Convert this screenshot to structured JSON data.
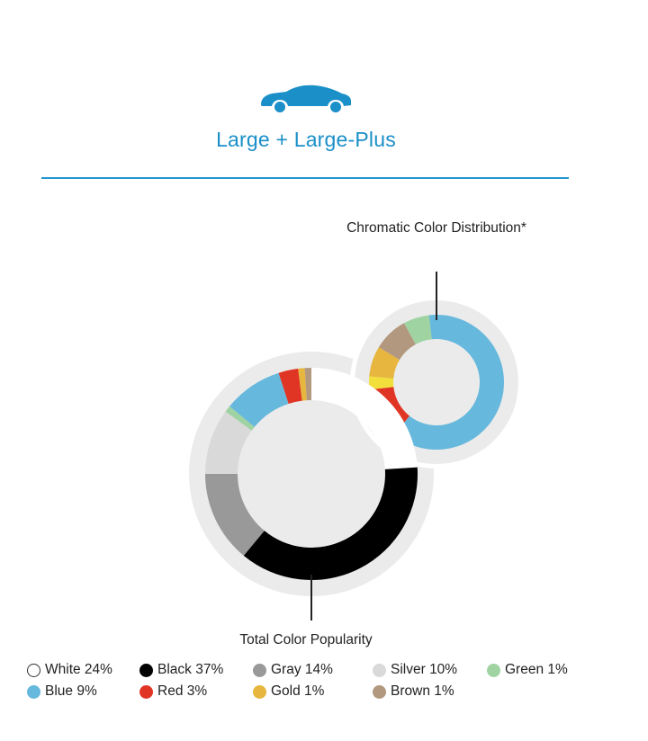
{
  "header": {
    "title": "Large + Large-Plus",
    "icon": "car-icon",
    "accent": "#1a8fc8"
  },
  "callouts": {
    "chromatic": "Chromatic Color Distribution*",
    "total": "Total Color Popularity"
  },
  "chart_data": [
    {
      "type": "pie",
      "subtype": "donut",
      "title": "Total Color Popularity",
      "categories": [
        "White",
        "Black",
        "Gray",
        "Silver",
        "Green",
        "Blue",
        "Red",
        "Gold",
        "Brown"
      ],
      "values": [
        24,
        37,
        14,
        10,
        1,
        9,
        3,
        1,
        1
      ],
      "colors": [
        "#ffffff",
        "#000000",
        "#999999",
        "#d9d9d9",
        "#9fd3a2",
        "#66b8dd",
        "#e03525",
        "#e7b63e",
        "#b39880"
      ]
    },
    {
      "type": "pie",
      "subtype": "donut",
      "title": "Chromatic Color Distribution*",
      "categories": [
        "Green",
        "Blue",
        "Red",
        "Yellow",
        "Gold",
        "Brown"
      ],
      "values": [
        6,
        60,
        12,
        3,
        7,
        8
      ],
      "colors": [
        "#9fd3a2",
        "#66b8dd",
        "#e03525",
        "#f2df3c",
        "#e7b63e",
        "#b39880"
      ]
    }
  ],
  "legend": [
    {
      "label": "White 24%",
      "color": "#ffffff",
      "icon": "white-dot"
    },
    {
      "label": "Black 37%",
      "color": "#000000",
      "icon": "black-dot"
    },
    {
      "label": "Gray 14%",
      "color": "#999999",
      "icon": "gray-dot"
    },
    {
      "label": "Silver 10%",
      "color": "#d9d9d9",
      "icon": "silver-dot"
    },
    {
      "label": "Green 1%",
      "color": "#9fd3a2",
      "icon": "green-dot"
    },
    {
      "label": "Blue 9%",
      "color": "#66b8dd",
      "icon": "blue-dot"
    },
    {
      "label": "Red 3%",
      "color": "#e03525",
      "icon": "red-dot"
    },
    {
      "label": "Gold 1%",
      "color": "#e7b63e",
      "icon": "gold-dot"
    },
    {
      "label": "Brown 1%",
      "color": "#b39880",
      "icon": "brown-dot"
    }
  ]
}
